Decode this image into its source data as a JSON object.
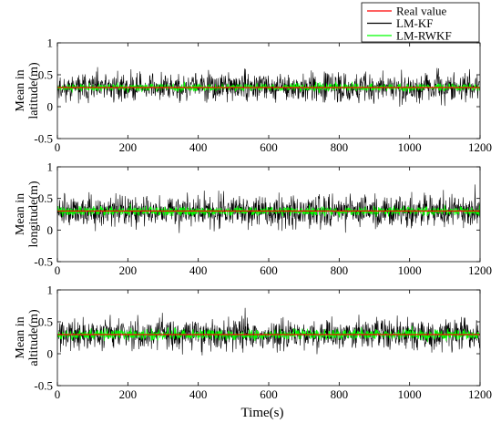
{
  "legend": {
    "items": [
      {
        "label": "Real value",
        "color": "#ff0000"
      },
      {
        "label": "LM-KF",
        "color": "#000000"
      },
      {
        "label": "LM-RWKF",
        "color": "#00ff00"
      }
    ],
    "placement": "top-right, above first panel"
  },
  "xlabel": "Time(s)",
  "chart_data": [
    {
      "type": "line",
      "ylabel_lines": [
        "Mean in",
        "latitude(m)"
      ],
      "xlim": [
        0,
        1200
      ],
      "ylim": [
        -0.5,
        1
      ],
      "x_ticks": [
        "0",
        "200",
        "400",
        "600",
        "800",
        "1000",
        "1200"
      ],
      "y_ticks": [
        "-0.5",
        "0",
        "0.5",
        "1"
      ],
      "grid": false,
      "series": [
        {
          "name": "Real value",
          "color": "#ff0000",
          "kind": "constant",
          "value": 0.3
        },
        {
          "name": "LM-KF",
          "color": "#000000",
          "kind": "noise",
          "center": 0.3,
          "spread": 0.11,
          "clip": [
            0.0,
            0.62
          ],
          "seed": 11
        },
        {
          "name": "LM-RWKF",
          "color": "#00ff00",
          "kind": "noise",
          "center": 0.3,
          "spread": 0.03,
          "clip": [
            0.22,
            0.39
          ],
          "seed": 21
        }
      ]
    },
    {
      "type": "line",
      "ylabel_lines": [
        "Mean in",
        "longitude(m)"
      ],
      "xlim": [
        0,
        1200
      ],
      "ylim": [
        -0.5,
        1
      ],
      "x_ticks": [
        "0",
        "200",
        "400",
        "600",
        "800",
        "1000",
        "1200"
      ],
      "y_ticks": [
        "-0.5",
        "0",
        "0.5",
        "1"
      ],
      "grid": false,
      "series": [
        {
          "name": "Real value",
          "color": "#ff0000",
          "kind": "constant",
          "value": 0.3
        },
        {
          "name": "LM-KF",
          "color": "#000000",
          "kind": "noise",
          "center": 0.3,
          "spread": 0.12,
          "clip": [
            -0.08,
            0.72
          ],
          "seed": 12
        },
        {
          "name": "LM-RWKF",
          "color": "#00ff00",
          "kind": "noise",
          "center": 0.3,
          "spread": 0.035,
          "clip": [
            0.2,
            0.42
          ],
          "seed": 22
        }
      ]
    },
    {
      "type": "line",
      "ylabel_lines": [
        "Mean in",
        "altitude(m)"
      ],
      "xlim": [
        0,
        1200
      ],
      "ylim": [
        -0.5,
        1
      ],
      "x_ticks": [
        "0",
        "200",
        "400",
        "600",
        "800",
        "1000",
        "1200"
      ],
      "y_ticks": [
        "-0.5",
        "0",
        "0.5",
        "1"
      ],
      "grid": false,
      "series": [
        {
          "name": "Real value",
          "color": "#ff0000",
          "kind": "constant",
          "value": 0.3
        },
        {
          "name": "LM-KF",
          "color": "#000000",
          "kind": "noise",
          "center": 0.3,
          "spread": 0.12,
          "clip": [
            -0.1,
            0.95
          ],
          "seed": 13
        },
        {
          "name": "LM-RWKF",
          "color": "#00ff00",
          "kind": "noise",
          "center": 0.3,
          "spread": 0.04,
          "clip": [
            0.18,
            0.45
          ],
          "seed": 23
        }
      ]
    }
  ]
}
